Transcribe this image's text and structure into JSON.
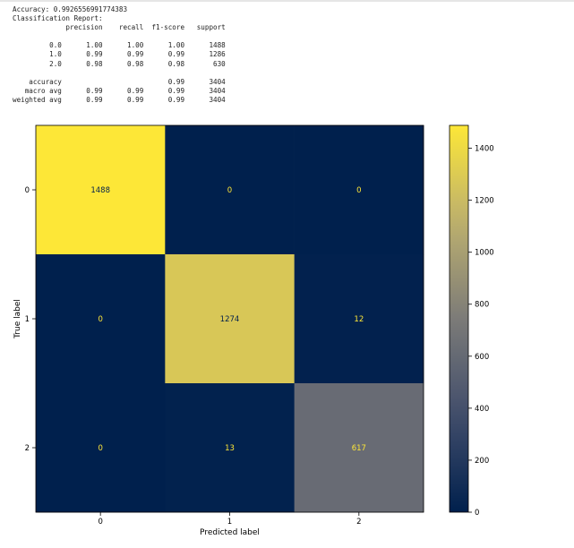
{
  "report": {
    "accuracy_line": "Accuracy: 0.9926556991774383",
    "title": "Classification Report:",
    "headers": [
      "precision",
      "recall",
      "f1-score",
      "support"
    ],
    "rows": [
      {
        "label": "0.0",
        "precision": "1.00",
        "recall": "1.00",
        "f1": "1.00",
        "support": "1488"
      },
      {
        "label": "1.0",
        "precision": "0.99",
        "recall": "0.99",
        "f1": "0.99",
        "support": "1286"
      },
      {
        "label": "2.0",
        "precision": "0.98",
        "recall": "0.98",
        "f1": "0.98",
        "support": "630"
      }
    ],
    "summary": [
      {
        "label": "accuracy",
        "precision": "",
        "recall": "",
        "f1": "0.99",
        "support": "3404"
      },
      {
        "label": "macro avg",
        "precision": "0.99",
        "recall": "0.99",
        "f1": "0.99",
        "support": "3404"
      },
      {
        "label": "weighted avg",
        "precision": "0.99",
        "recall": "0.99",
        "f1": "0.99",
        "support": "3404"
      }
    ]
  },
  "chart_data": {
    "type": "heatmap",
    "xlabel": "Predicted label",
    "ylabel": "True label",
    "x_categories": [
      "0",
      "1",
      "2"
    ],
    "y_categories": [
      "0",
      "1",
      "2"
    ],
    "matrix": [
      [
        1488,
        0,
        0
      ],
      [
        0,
        1274,
        12
      ],
      [
        0,
        13,
        617
      ]
    ],
    "colormap": "cividis",
    "colorbar": {
      "min": 0,
      "max": 1488,
      "ticks": [
        0,
        200,
        400,
        600,
        800,
        1000,
        1200,
        1400
      ]
    },
    "text_colors": {
      "on_dark": "#fde737",
      "on_light": "#00204c"
    }
  }
}
